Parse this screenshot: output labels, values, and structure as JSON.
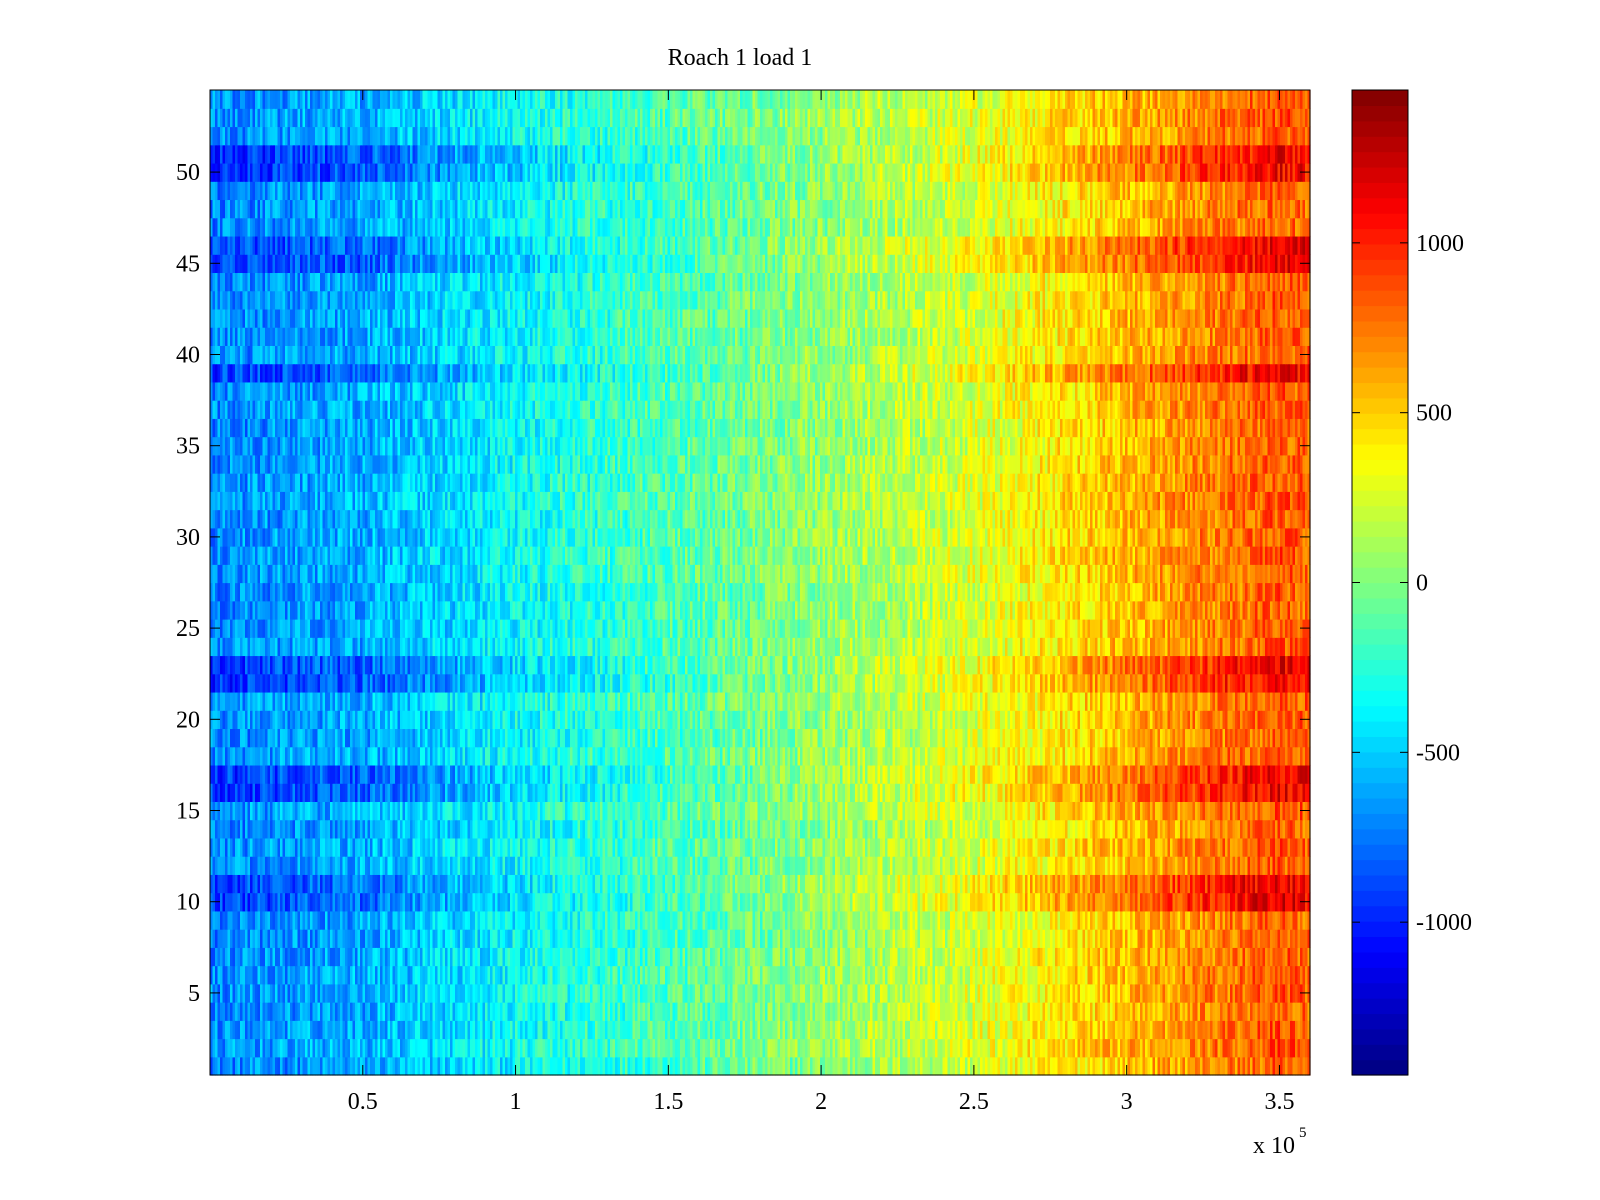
{
  "chart_data": {
    "type": "heatmap",
    "title": "Roach 1 load 1",
    "xlabel": "",
    "ylabel": "",
    "x_exponent_label": "x 10",
    "x_exponent_power": "5",
    "xlim": [
      0,
      3.6
    ],
    "ylim": [
      0.5,
      54.5
    ],
    "x_ticks": [
      0.5,
      1,
      1.5,
      2,
      2.5,
      3,
      3.5
    ],
    "x_tick_labels": [
      "0.5",
      "1",
      "1.5",
      "2",
      "2.5",
      "3",
      "3.5"
    ],
    "y_ticks": [
      5,
      10,
      15,
      20,
      25,
      30,
      35,
      40,
      45,
      50
    ],
    "y_tick_labels": [
      "5",
      "10",
      "15",
      "20",
      "25",
      "30",
      "35",
      "40",
      "45",
      "50"
    ],
    "rows": 54,
    "colormap": "jet",
    "colorbar": {
      "clim": [
        -1450,
        1450
      ],
      "ticks": [
        -1000,
        -500,
        0,
        500,
        1000
      ],
      "tick_labels": [
        "-1000",
        "-500",
        "0",
        "500",
        "1000"
      ]
    },
    "trend": {
      "description": "values increase from left (about -700) to right (about +900) with strong per-column noise",
      "x_points": [
        0,
        0.5,
        1,
        1.5,
        2,
        2.5,
        3,
        3.5,
        3.6
      ],
      "values": [
        -700,
        -600,
        -350,
        -150,
        50,
        250,
        550,
        850,
        800
      ]
    },
    "strong_rows": [
      10,
      11,
      16,
      17,
      22,
      23,
      39,
      45,
      46,
      50,
      51
    ]
  }
}
